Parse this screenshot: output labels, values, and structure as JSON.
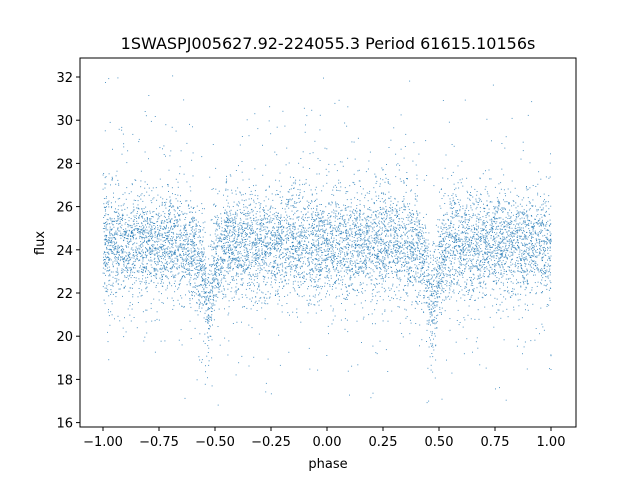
{
  "chart_data": {
    "type": "scatter",
    "title": "1SWASPJ005627.92-224055.3 Period 61615.10156s",
    "xlabel": "phase",
    "ylabel": "flux",
    "xlim": [
      -1.09,
      1.09
    ],
    "ylim": [
      15.8,
      32.9
    ],
    "xticks": [
      "-1.00",
      "-0.75",
      "-0.50",
      "-0.25",
      "0.00",
      "0.25",
      "0.50",
      "0.75",
      "1.00"
    ],
    "xtick_values": [
      -1.0,
      -0.75,
      -0.5,
      -0.25,
      0,
      0.25,
      0.5,
      0.75,
      1.0
    ],
    "yticks": [
      "16",
      "18",
      "20",
      "22",
      "24",
      "26",
      "28",
      "30",
      "32"
    ],
    "ytick_values": [
      16,
      18,
      20,
      22,
      24,
      26,
      28,
      30,
      32
    ],
    "grid": false,
    "point_color": "#1f77b4",
    "series": [
      {
        "x": [
          -1.0,
          -0.9,
          -0.8,
          -0.7,
          -0.6,
          -0.56,
          -0.54,
          -0.53,
          -0.52,
          -0.5,
          -0.45,
          -0.3,
          -0.1,
          0.0,
          0.1,
          0.3,
          0.4,
          0.44,
          0.46,
          0.47,
          0.48,
          0.5,
          0.55,
          0.7,
          0.9,
          1.0
        ],
        "y": [
          24.3,
          24.3,
          24.3,
          24.3,
          24.2,
          23.3,
          21.8,
          21.0,
          21.8,
          23.3,
          24.2,
          24.3,
          24.3,
          24.3,
          24.3,
          24.3,
          24.2,
          23.3,
          21.8,
          21.0,
          21.8,
          23.3,
          24.2,
          24.3,
          24.3,
          24.3
        ]
      }
    ]
  }
}
